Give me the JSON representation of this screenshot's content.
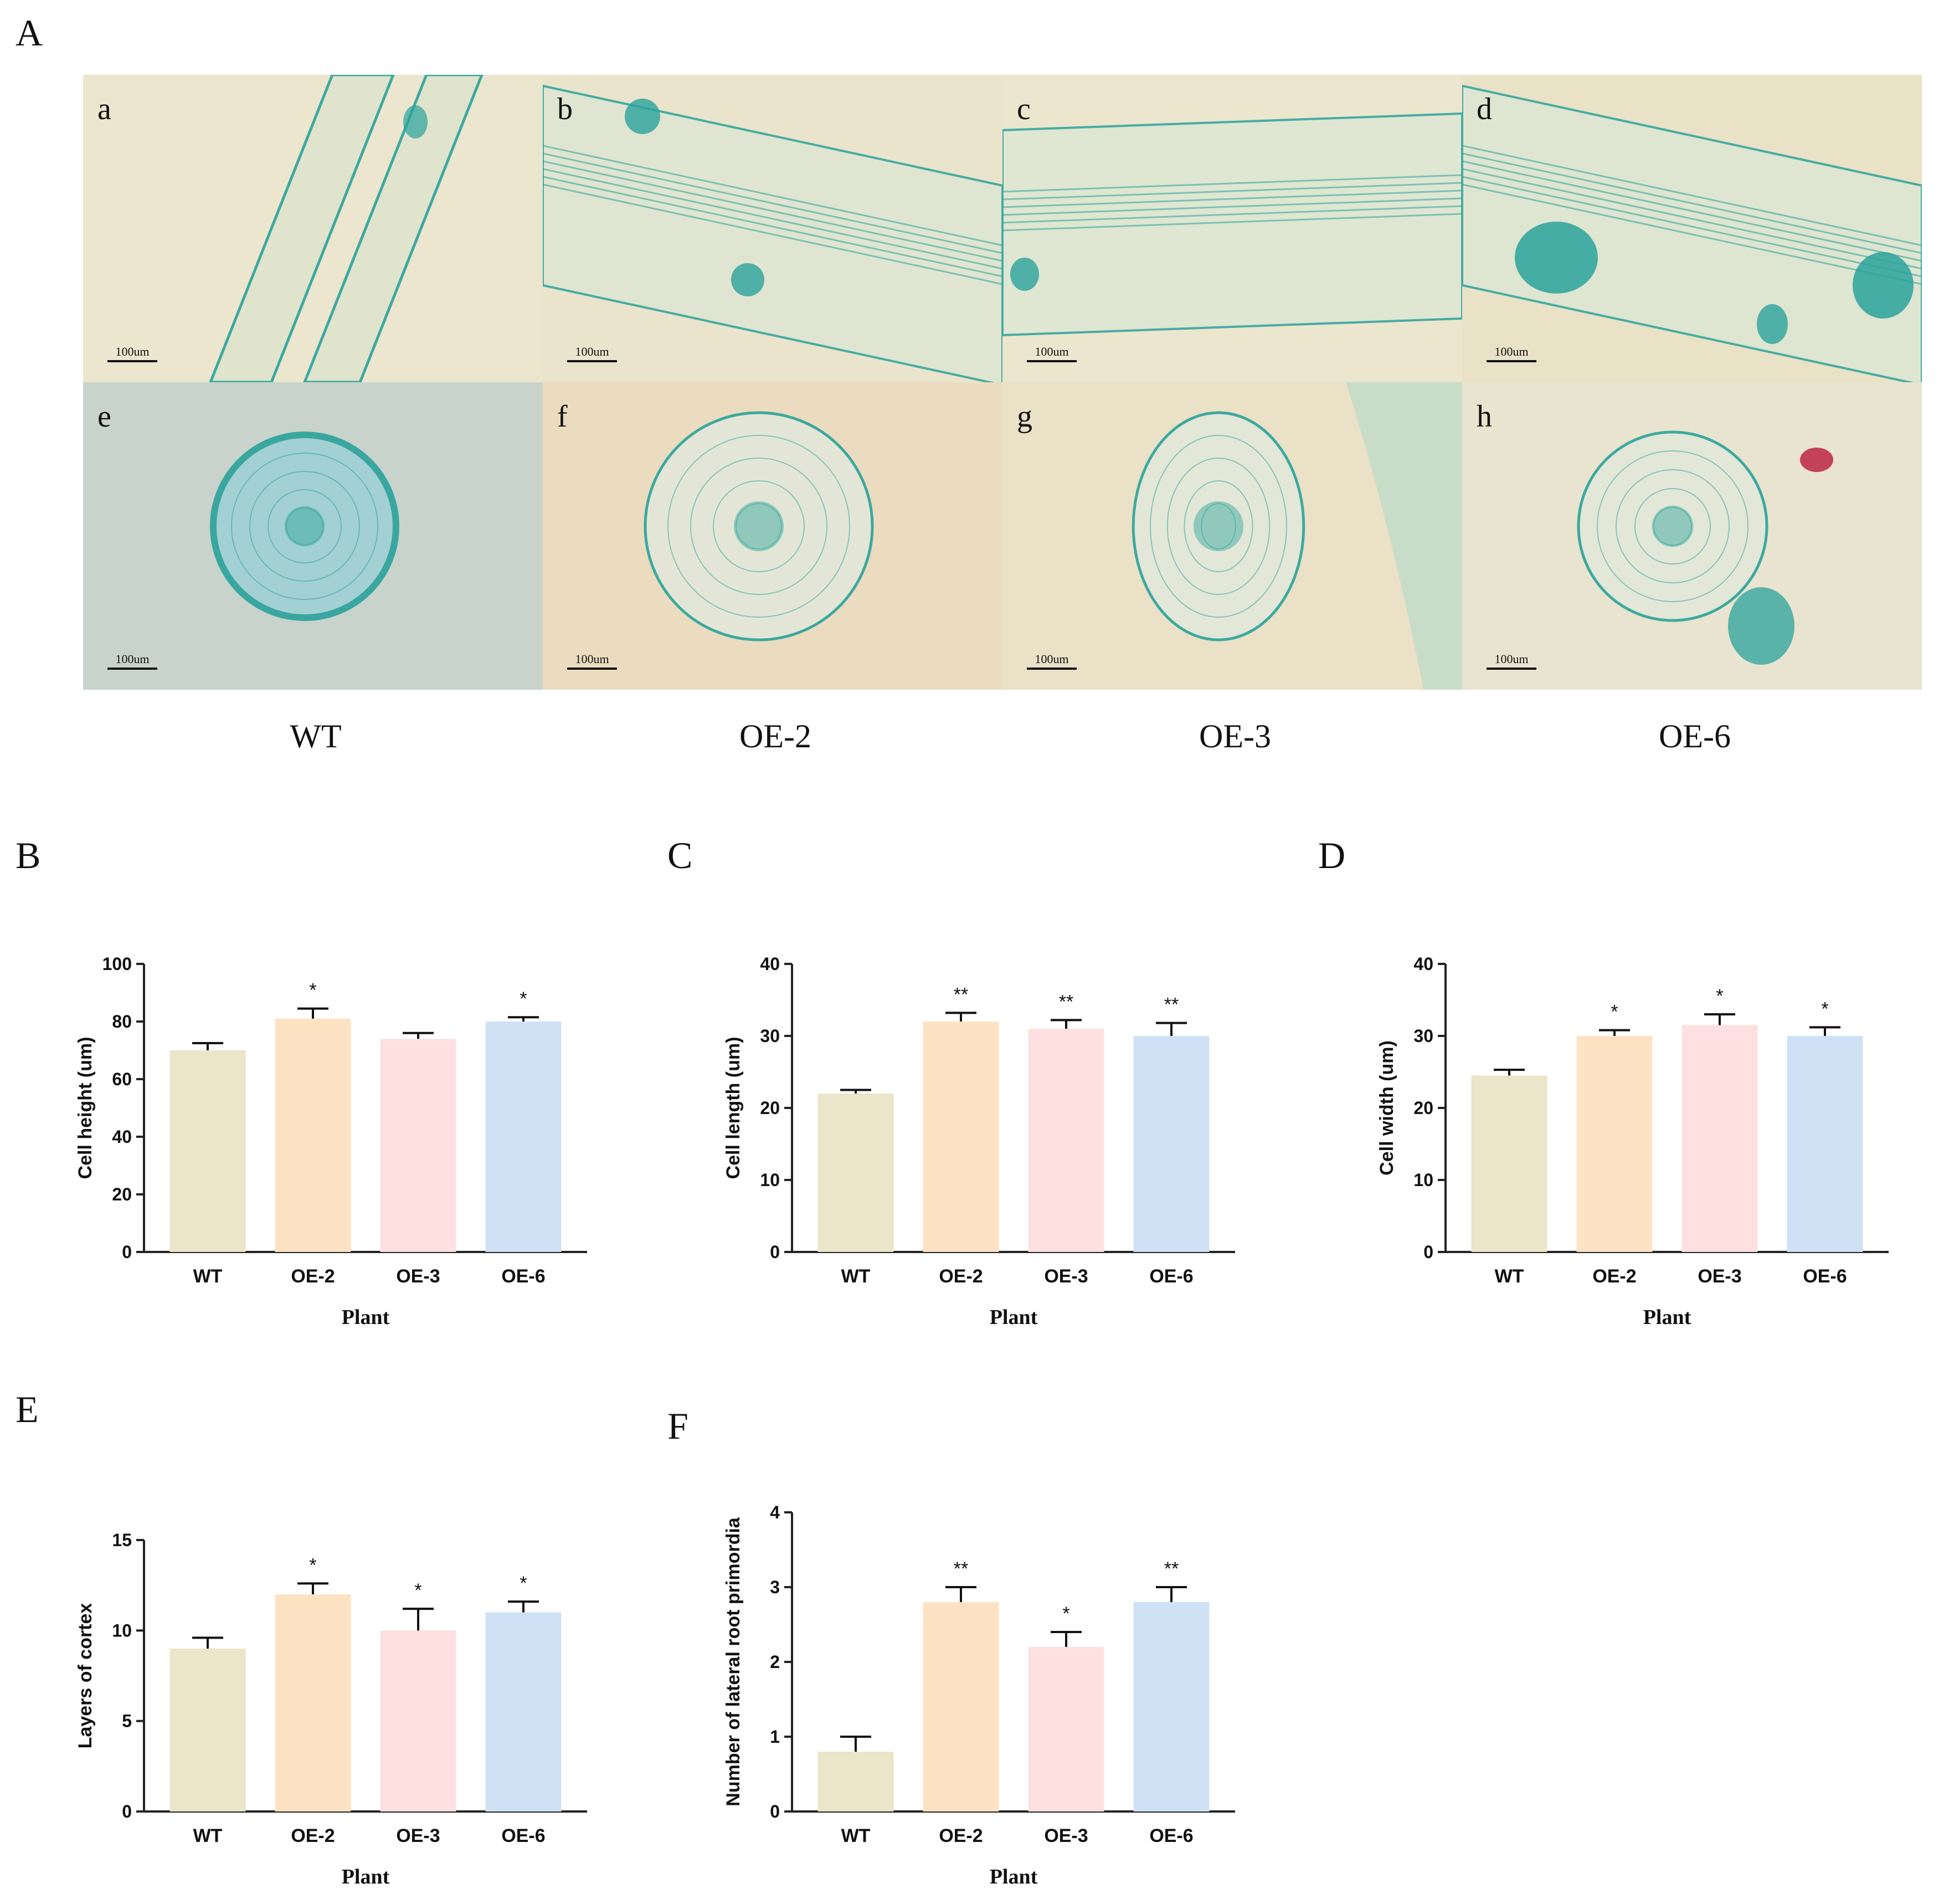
{
  "figure": {
    "panel_letters": [
      "A",
      "B",
      "C",
      "D",
      "E",
      "F"
    ]
  },
  "micrographs": {
    "items": [
      {
        "letter": "a",
        "scale": "100um",
        "bg": "#ece6cf",
        "view": "longitudinal"
      },
      {
        "letter": "b",
        "scale": "100um",
        "bg": "#ebe4cc",
        "view": "longitudinal"
      },
      {
        "letter": "c",
        "scale": "100um",
        "bg": "#ede6cf",
        "view": "longitudinal"
      },
      {
        "letter": "d",
        "scale": "100um",
        "bg": "#e9e2c6",
        "view": "longitudinal"
      },
      {
        "letter": "e",
        "scale": "100um",
        "bg": "#c8d3cc",
        "view": "cross"
      },
      {
        "letter": "f",
        "scale": "100um",
        "bg": "#ebdcc0",
        "view": "cross"
      },
      {
        "letter": "g",
        "scale": "100um",
        "bg": "#ebe1c7",
        "view": "cross"
      },
      {
        "letter": "h",
        "scale": "100um",
        "bg": "#e9e4cf",
        "view": "cross"
      }
    ],
    "genotype_labels": [
      "WT",
      "OE-2",
      "OE-3",
      "OE-6"
    ],
    "stain_color": "#2aa39c"
  },
  "chart_data": [
    {
      "panel": "B",
      "type": "bar",
      "categories": [
        "WT",
        "OE-2",
        "OE-3",
        "OE-6"
      ],
      "values": [
        70,
        81,
        74,
        80
      ],
      "errors": [
        2.5,
        3.5,
        2,
        1.5
      ],
      "significance": [
        "",
        "*",
        "",
        "*"
      ],
      "xlabel": "Plant",
      "ylabel": "Cell height (um)",
      "ylim": [
        0,
        100
      ],
      "yticks": [
        "0",
        "20",
        "40",
        "60",
        "80",
        "100"
      ],
      "colors": [
        "#ebe5c9",
        "#fde3c3",
        "#fde0df",
        "#cfe1f5"
      ]
    },
    {
      "panel": "C",
      "type": "bar",
      "categories": [
        "WT",
        "OE-2",
        "OE-3",
        "OE-6"
      ],
      "values": [
        22,
        32,
        31,
        30
      ],
      "errors": [
        0.5,
        1.2,
        1.2,
        1.8
      ],
      "significance": [
        "",
        "**",
        "**",
        "**"
      ],
      "xlabel": "Plant",
      "ylabel": "Cell length (um)",
      "ylim": [
        0,
        40
      ],
      "yticks": [
        "0",
        "10",
        "20",
        "30",
        "40"
      ],
      "colors": [
        "#ebe5c9",
        "#fde3c3",
        "#fde0df",
        "#cfe1f5"
      ]
    },
    {
      "panel": "D",
      "type": "bar",
      "categories": [
        "WT",
        "OE-2",
        "OE-3",
        "OE-6"
      ],
      "values": [
        24.5,
        30,
        31.5,
        30
      ],
      "errors": [
        0.8,
        0.8,
        1.5,
        1.2
      ],
      "significance": [
        "",
        "*",
        "*",
        "*"
      ],
      "xlabel": "Plant",
      "ylabel": "Cell width (um)",
      "ylim": [
        0,
        40
      ],
      "yticks": [
        "0",
        "10",
        "20",
        "30",
        "40"
      ],
      "colors": [
        "#ebe5c9",
        "#fde3c3",
        "#fde0df",
        "#cfe1f5"
      ]
    },
    {
      "panel": "E",
      "type": "bar",
      "categories": [
        "WT",
        "OE-2",
        "OE-3",
        "OE-6"
      ],
      "values": [
        9,
        12,
        10,
        11
      ],
      "errors": [
        0.6,
        0.6,
        1.2,
        0.6
      ],
      "significance": [
        "",
        "*",
        "*",
        "*"
      ],
      "xlabel": "Plant",
      "ylabel": "Layers of cortex",
      "ylim": [
        0,
        15
      ],
      "yticks": [
        "0",
        "5",
        "10",
        "15"
      ],
      "colors": [
        "#ebe5c9",
        "#fde3c3",
        "#fde0df",
        "#cfe1f5"
      ]
    },
    {
      "panel": "F",
      "type": "bar",
      "categories": [
        "WT",
        "OE-2",
        "OE-3",
        "OE-6"
      ],
      "values": [
        0.8,
        2.8,
        2.2,
        2.8
      ],
      "errors": [
        0.2,
        0.2,
        0.2,
        0.2
      ],
      "significance": [
        "",
        "**",
        "*",
        "**"
      ],
      "xlabel": "Plant",
      "ylabel": "Number of lateral root primordia",
      "ylim": [
        0,
        4
      ],
      "yticks": [
        "0",
        "1",
        "2",
        "3",
        "4"
      ],
      "colors": [
        "#ebe5c9",
        "#fde3c3",
        "#fde0df",
        "#cfe1f5"
      ]
    }
  ]
}
